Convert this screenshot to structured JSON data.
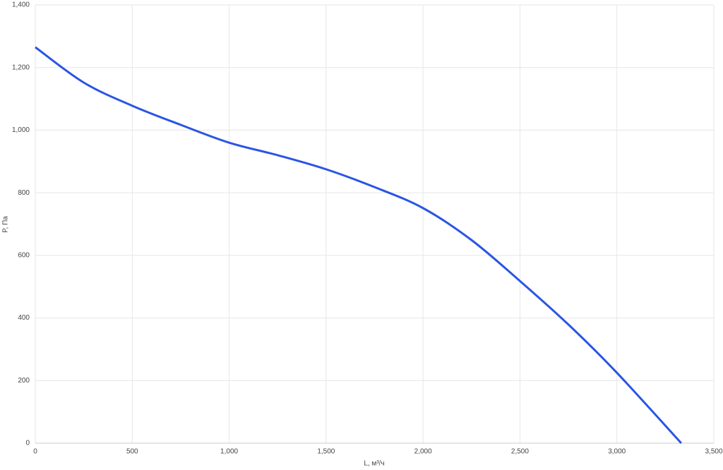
{
  "chart_data": {
    "type": "line",
    "x_label": "L, м³/ч",
    "y_label": "P, Па",
    "x": [
      0,
      250,
      500,
      750,
      1000,
      1250,
      1500,
      1750,
      2000,
      2250,
      2500,
      2750,
      3000,
      3332
    ],
    "series": [
      {
        "color": "#2a55e5",
        "values": [
          1265,
          1152,
          1078,
          1017,
          960,
          920,
          875,
          818,
          751,
          649,
          518,
          379,
          225,
          0
        ]
      }
    ],
    "xlim": [
      0,
      3500
    ],
    "xticks": [
      0,
      500,
      {
        "value": 1000,
        "label": "1,000"
      },
      {
        "value": 1500,
        "label": "1,500"
      },
      {
        "value": 2000,
        "label": "2,000"
      },
      {
        "value": 2500,
        "label": "2,500"
      },
      {
        "value": 3000,
        "label": "3,000"
      },
      {
        "value": 3500,
        "label": "3,500"
      }
    ],
    "ylim": [
      0,
      1400
    ],
    "yticks": [
      0,
      200,
      400,
      600,
      800,
      {
        "value": 1000,
        "label": "1,000"
      },
      {
        "value": 1200,
        "label": "1,200"
      },
      {
        "value": 1400,
        "label": "1,400"
      }
    ],
    "grid": true
  }
}
